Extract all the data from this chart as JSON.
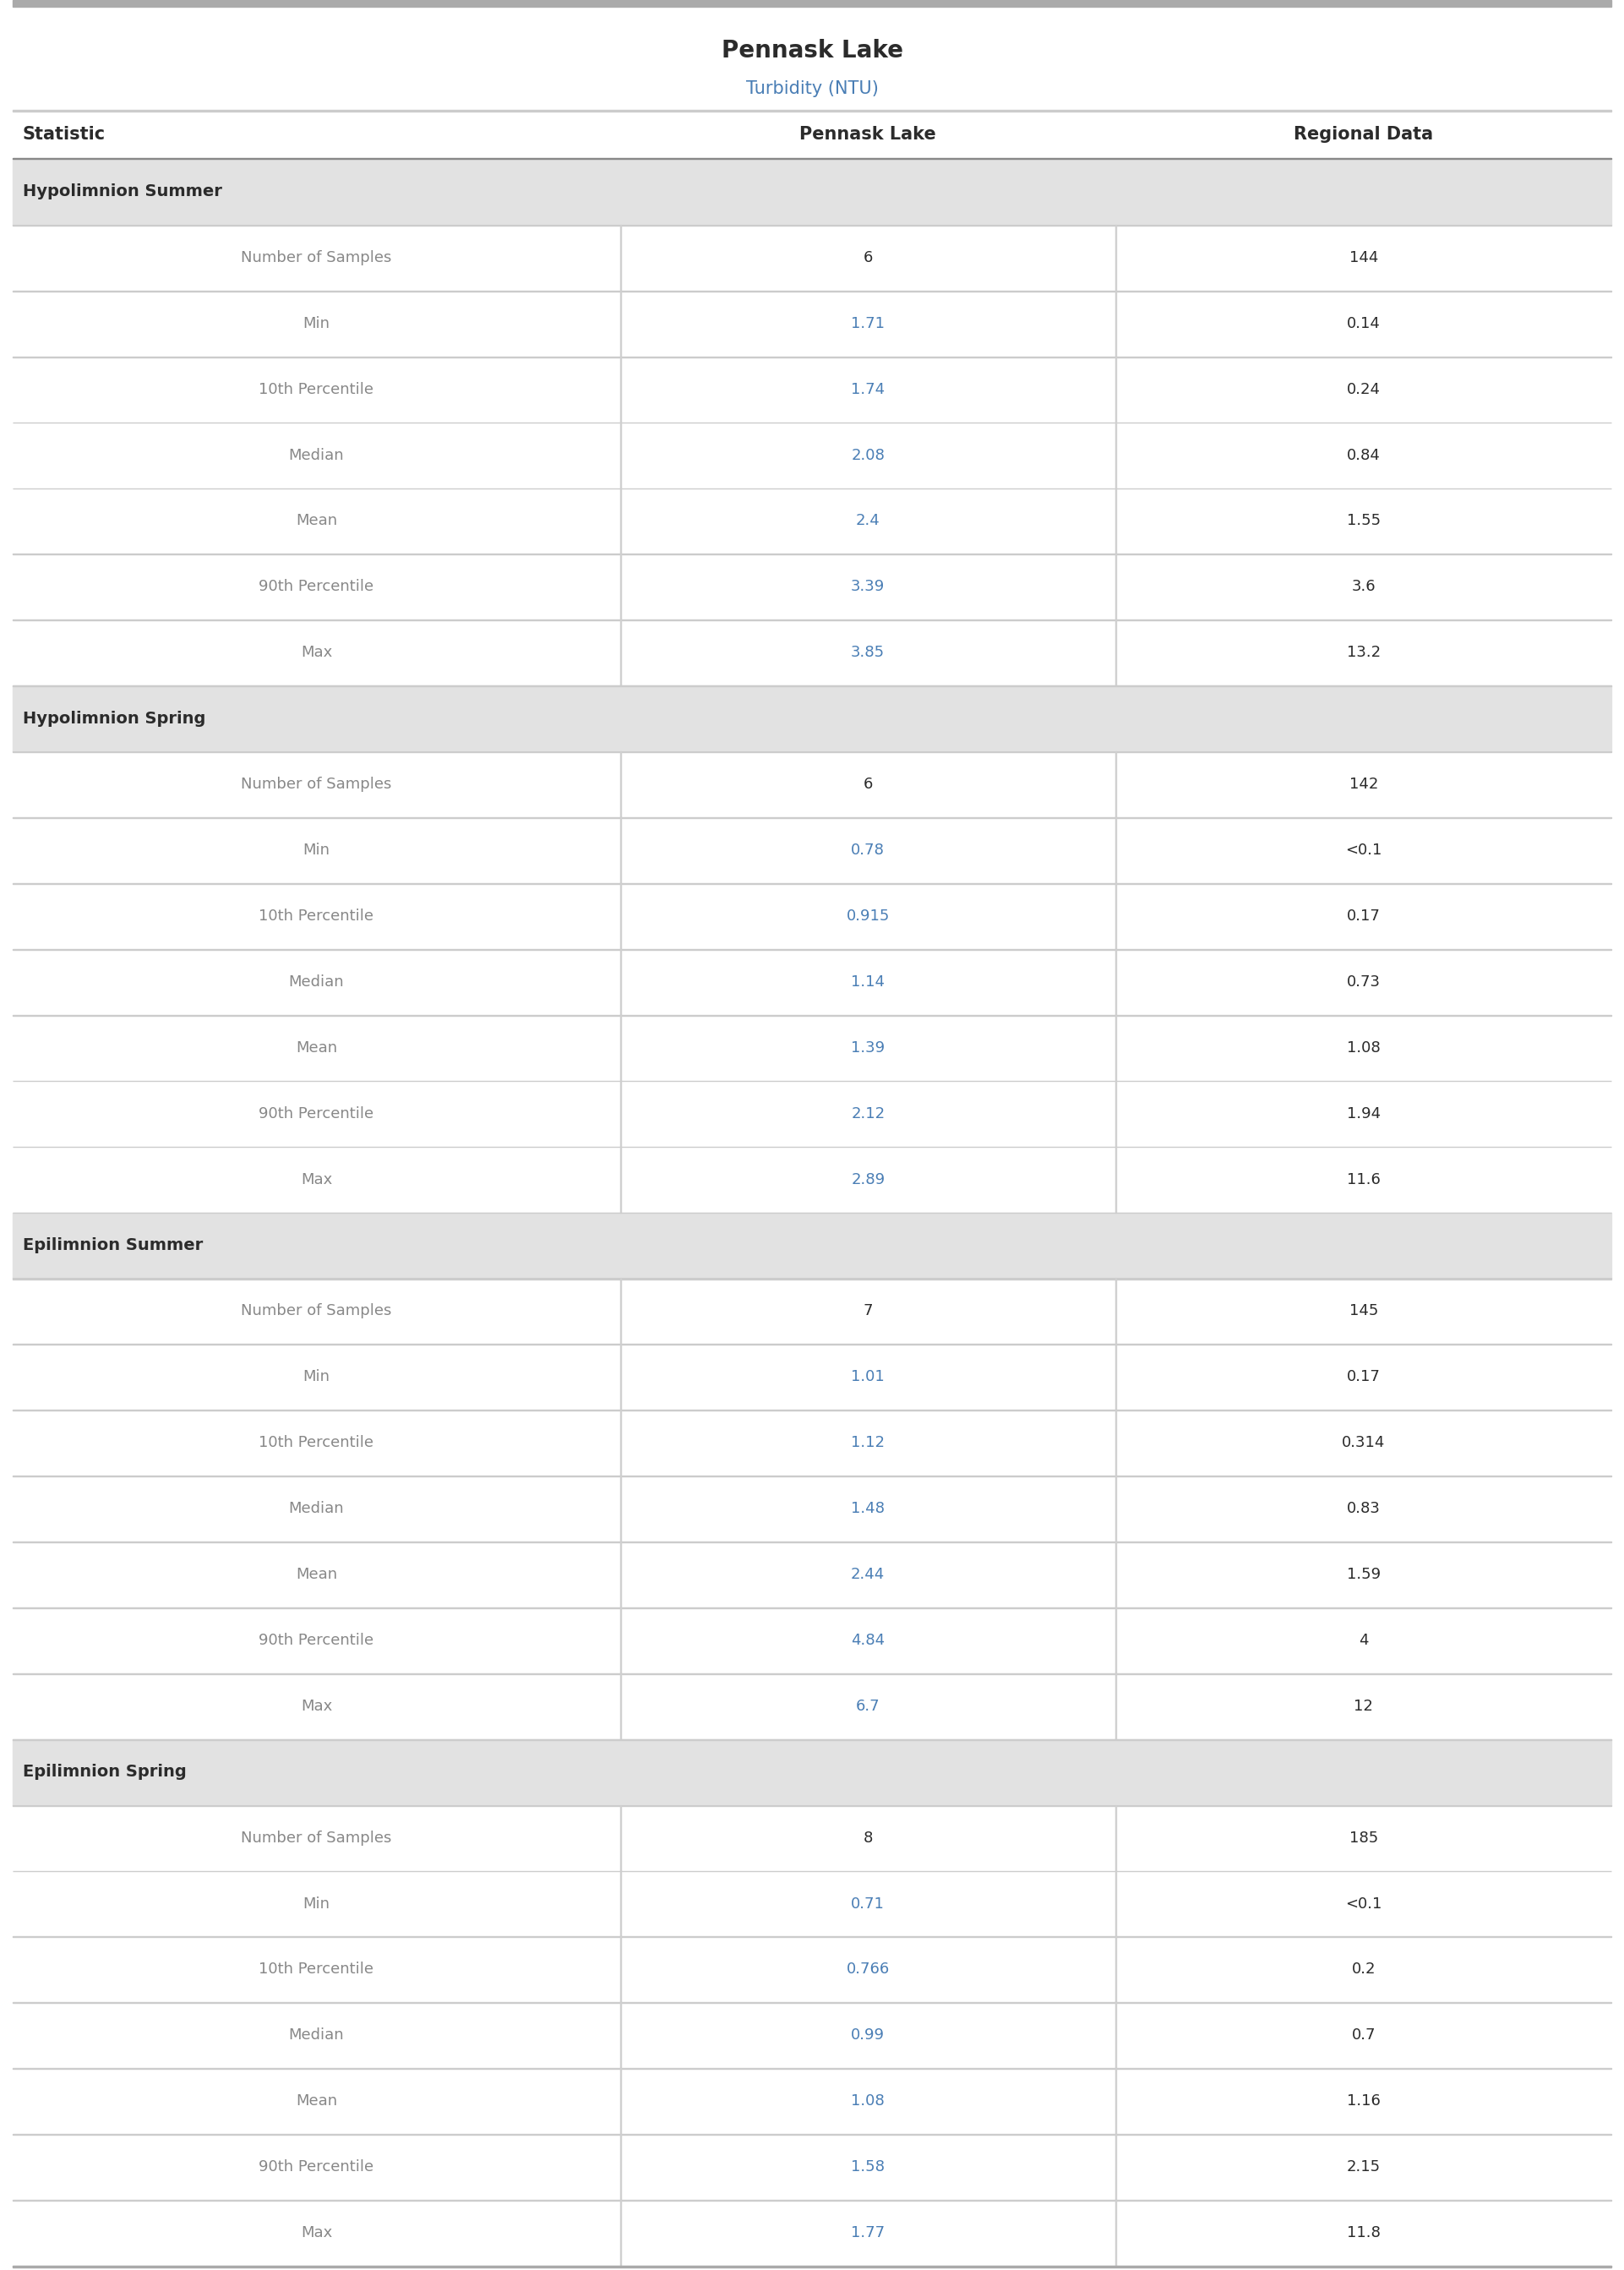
{
  "title": "Pennask Lake",
  "subtitle": "Turbidity (NTU)",
  "title_color": "#2b2b2b",
  "subtitle_color": "#4a7eb5",
  "col_headers": [
    "Statistic",
    "Pennask Lake",
    "Regional Data"
  ],
  "col_header_color": "#2b2b2b",
  "section_bg_color": "#e2e2e2",
  "section_text_color": "#2b2b2b",
  "row_bg_white": "#ffffff",
  "divider_color": "#cccccc",
  "top_bar_color": "#aaaaaa",
  "col_divider_color": "#d0d0d0",
  "sections": [
    {
      "name": "Hypolimnion Summer",
      "rows": [
        [
          "Number of Samples",
          "6",
          "144"
        ],
        [
          "Min",
          "1.71",
          "0.14"
        ],
        [
          "10th Percentile",
          "1.74",
          "0.24"
        ],
        [
          "Median",
          "2.08",
          "0.84"
        ],
        [
          "Mean",
          "2.4",
          "1.55"
        ],
        [
          "90th Percentile",
          "3.39",
          "3.6"
        ],
        [
          "Max",
          "3.85",
          "13.2"
        ]
      ]
    },
    {
      "name": "Hypolimnion Spring",
      "rows": [
        [
          "Number of Samples",
          "6",
          "142"
        ],
        [
          "Min",
          "0.78",
          "<0.1"
        ],
        [
          "10th Percentile",
          "0.915",
          "0.17"
        ],
        [
          "Median",
          "1.14",
          "0.73"
        ],
        [
          "Mean",
          "1.39",
          "1.08"
        ],
        [
          "90th Percentile",
          "2.12",
          "1.94"
        ],
        [
          "Max",
          "2.89",
          "11.6"
        ]
      ]
    },
    {
      "name": "Epilimnion Summer",
      "rows": [
        [
          "Number of Samples",
          "7",
          "145"
        ],
        [
          "Min",
          "1.01",
          "0.17"
        ],
        [
          "10th Percentile",
          "1.12",
          "0.314"
        ],
        [
          "Median",
          "1.48",
          "0.83"
        ],
        [
          "Mean",
          "2.44",
          "1.59"
        ],
        [
          "90th Percentile",
          "4.84",
          "4"
        ],
        [
          "Max",
          "6.7",
          "12"
        ]
      ]
    },
    {
      "name": "Epilimnion Spring",
      "rows": [
        [
          "Number of Samples",
          "8",
          "185"
        ],
        [
          "Min",
          "0.71",
          "<0.1"
        ],
        [
          "10th Percentile",
          "0.766",
          "0.2"
        ],
        [
          "Median",
          "0.99",
          "0.7"
        ],
        [
          "Mean",
          "1.08",
          "1.16"
        ],
        [
          "90th Percentile",
          "1.58",
          "2.15"
        ],
        [
          "Max",
          "1.77",
          "11.8"
        ]
      ]
    }
  ],
  "pennask_value_color": "#4a7eb5",
  "regional_value_color": "#2b2b2b",
  "stat_label_color": "#888888",
  "number_of_samples_color": "#2b2b2b"
}
